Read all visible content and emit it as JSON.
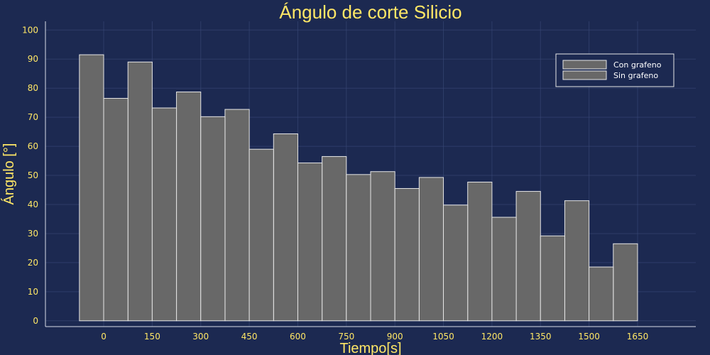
{
  "chart_data": {
    "type": "bar",
    "title": "Ángulo de corte Silicio",
    "xlabel": "Tiempo[s]",
    "ylabel": "Ángulo [°]",
    "x_ticks": [
      0,
      150,
      300,
      450,
      600,
      750,
      900,
      1050,
      1200,
      1350,
      1500,
      1650
    ],
    "y_ticks": [
      0,
      10,
      20,
      30,
      40,
      50,
      60,
      70,
      80,
      90,
      100
    ],
    "ylim": [
      -2,
      103
    ],
    "xlim": [
      -180,
      1830
    ],
    "grid": true,
    "legend_position": "top-right",
    "colors": {
      "background": "#1c2951",
      "bar": "#686868",
      "bar_edge": "#e6e6e6",
      "text": "#ffe766"
    },
    "series": [
      {
        "name": "Con grafeno",
        "x": [
          0,
          150,
          300,
          450,
          600,
          750,
          900,
          1050,
          1200,
          1350,
          1500,
          1650
        ],
        "values": [
          91.5,
          89,
          78.7,
          72.7,
          64.3,
          56.5,
          51.3,
          49.3,
          47.7,
          44.5,
          41.3,
          26.5
        ]
      },
      {
        "name": "Sin grafeno",
        "x": [
          0,
          150,
          300,
          450,
          600,
          750,
          900,
          1050,
          1200,
          1350,
          1500,
          1650
        ],
        "values": [
          76.5,
          73.2,
          70.2,
          59,
          54.3,
          50.3,
          45.5,
          39.8,
          35.6,
          29.2,
          18.5,
          0
        ]
      }
    ]
  }
}
